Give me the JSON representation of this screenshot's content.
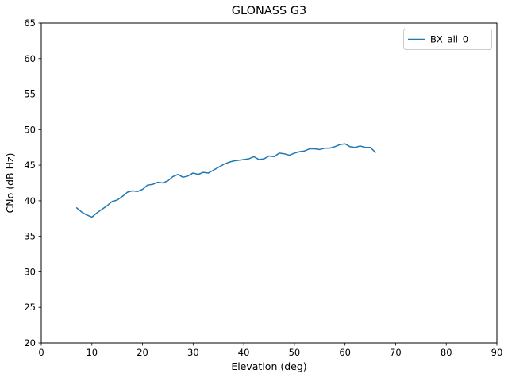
{
  "figure": {
    "title": "GLONASS G3",
    "background": "#ffffff"
  },
  "chart_data": {
    "type": "line",
    "title": "GLONASS G3",
    "xlabel": "Elevation (deg)",
    "ylabel": "CNo (dB Hz)",
    "xlim": [
      0,
      90
    ],
    "ylim": [
      20,
      65
    ],
    "xticks": [
      0,
      10,
      20,
      30,
      40,
      50,
      60,
      70,
      80,
      90
    ],
    "yticks": [
      20,
      25,
      30,
      35,
      40,
      45,
      50,
      55,
      60,
      65
    ],
    "grid": false,
    "legend": {
      "position": "upper right",
      "entries": [
        {
          "label": "BX_all_0",
          "color": "#1f77b4"
        }
      ]
    },
    "series": [
      {
        "name": "BX_all_0",
        "color": "#1f77b4",
        "x": [
          7,
          8,
          9,
          10,
          11,
          12,
          13,
          14,
          15,
          16,
          17,
          18,
          19,
          20,
          21,
          22,
          23,
          24,
          25,
          26,
          27,
          28,
          29,
          30,
          31,
          32,
          33,
          34,
          35,
          36,
          37,
          38,
          39,
          40,
          41,
          42,
          43,
          44,
          45,
          46,
          47,
          48,
          49,
          50,
          51,
          52,
          53,
          54,
          55,
          56,
          57,
          58,
          59,
          60,
          61,
          62,
          63,
          64,
          65,
          66
        ],
        "y": [
          39.0,
          38.4,
          38.0,
          37.7,
          38.3,
          38.8,
          39.3,
          39.9,
          40.1,
          40.6,
          41.2,
          41.4,
          41.3,
          41.6,
          42.2,
          42.3,
          42.6,
          42.5,
          42.8,
          43.4,
          43.7,
          43.3,
          43.5,
          43.9,
          43.7,
          44.0,
          43.9,
          44.3,
          44.7,
          45.1,
          45.4,
          45.6,
          45.7,
          45.8,
          45.9,
          46.2,
          45.8,
          45.9,
          46.3,
          46.2,
          46.7,
          46.6,
          46.4,
          46.7,
          46.9,
          47.0,
          47.3,
          47.3,
          47.2,
          47.4,
          47.4,
          47.6,
          47.9,
          48.0,
          47.6,
          47.5,
          47.7,
          47.5,
          47.5,
          46.8
        ]
      }
    ]
  }
}
